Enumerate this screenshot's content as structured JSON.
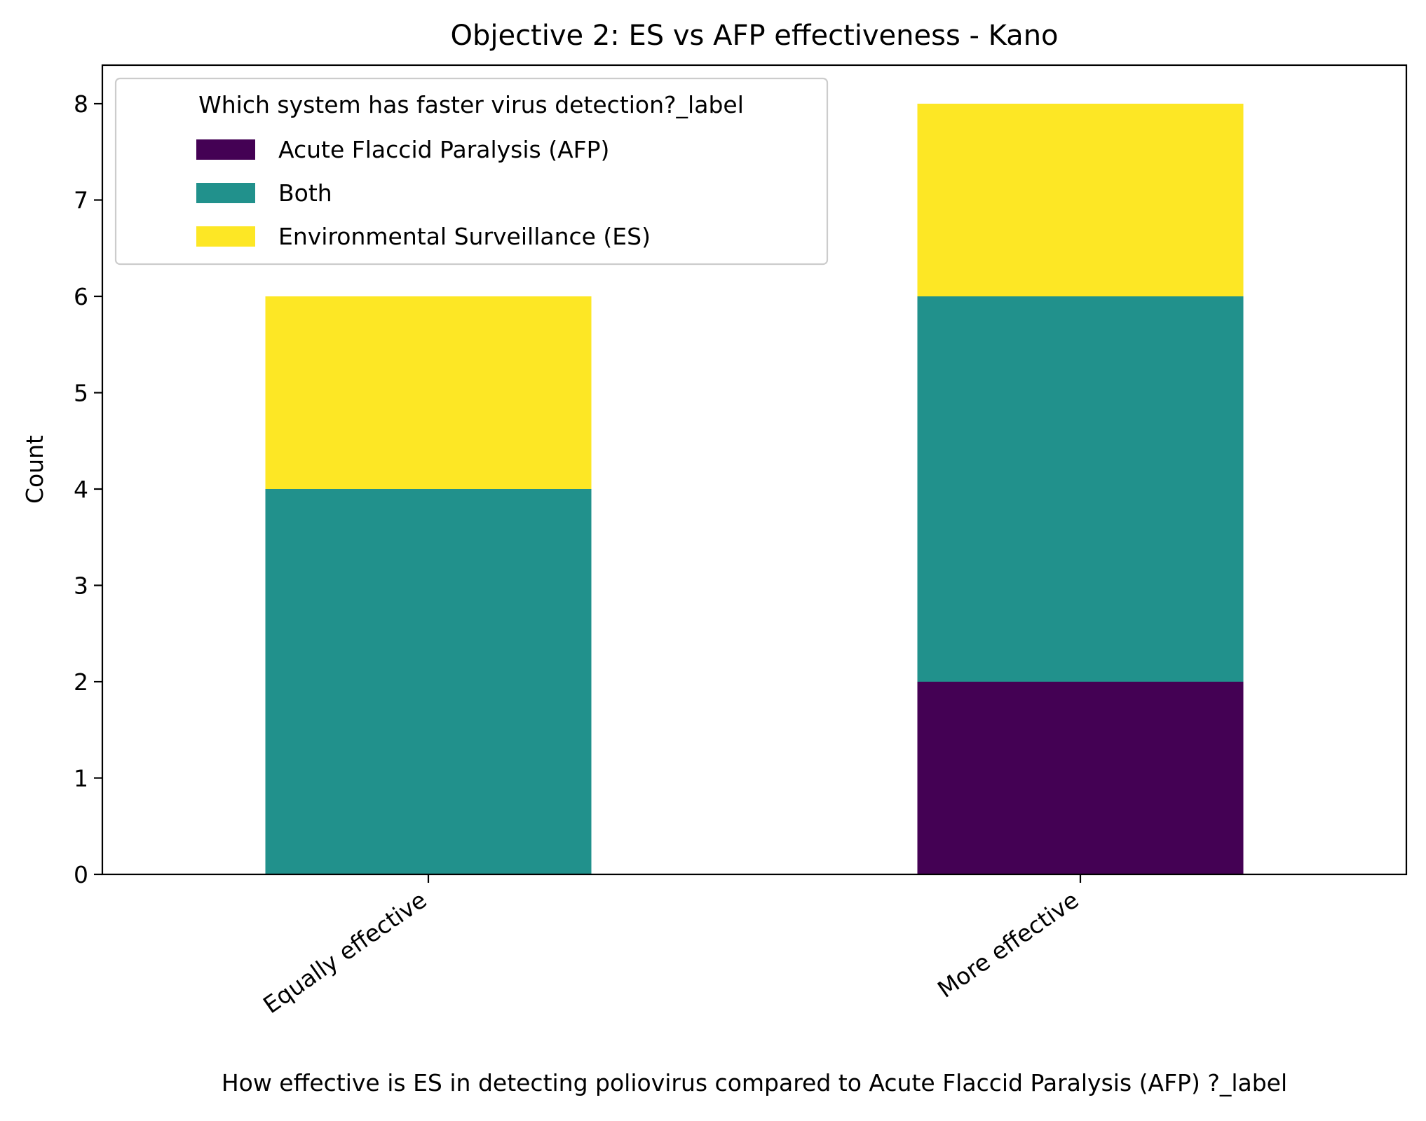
{
  "chart_data": {
    "type": "bar",
    "stacked": true,
    "title": "Objective 2: ES vs AFP effectiveness - Kano",
    "xlabel": "How effective is ES in detecting poliovirus compared to  Acute Flaccid Paralysis (AFP) ?_label",
    "ylabel": "Count",
    "ylim": [
      0,
      8.4
    ],
    "yticks": [
      0,
      1,
      2,
      3,
      4,
      5,
      6,
      7,
      8
    ],
    "categories": [
      "Equally effective",
      "More effective"
    ],
    "series": [
      {
        "name": "Acute Flaccid Paralysis (AFP)",
        "color": "#440154",
        "values": [
          0,
          2
        ]
      },
      {
        "name": "Both",
        "color": "#21918c",
        "values": [
          4,
          4
        ]
      },
      {
        "name": "Environmental Surveillance (ES)",
        "color": "#fde725",
        "values": [
          2,
          2
        ]
      }
    ],
    "legend": {
      "title": "Which system has faster virus detection?_label",
      "placement": "upper-left"
    },
    "grid": false
  }
}
